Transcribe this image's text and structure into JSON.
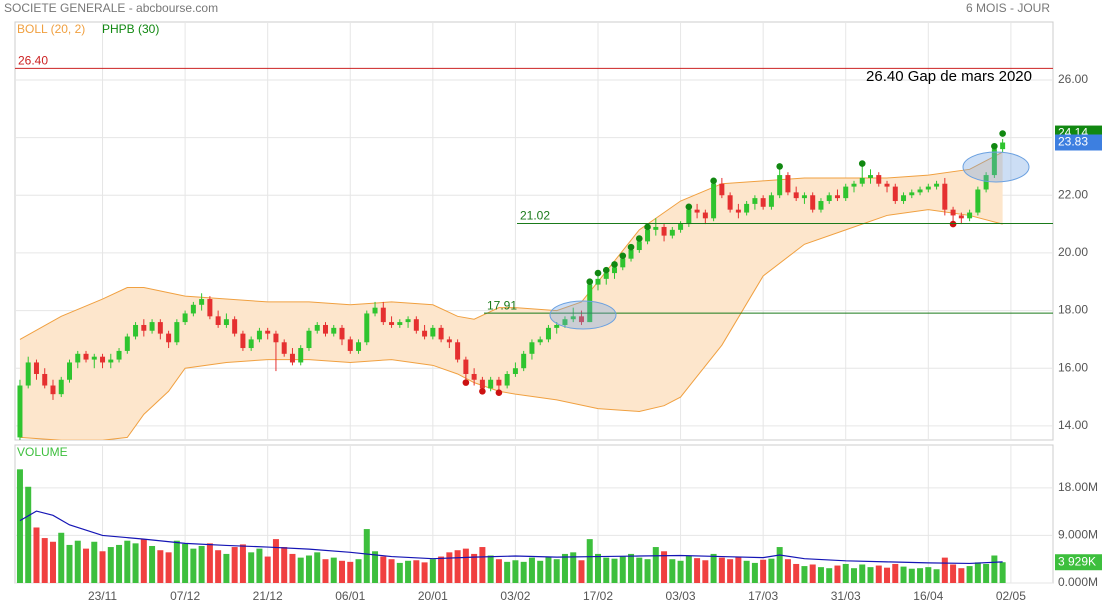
{
  "chart_data": {
    "type": "candlestick",
    "title": "SOCIETE GENERALE - abcbourse.com",
    "subtitle": "6 MOIS - JOUR",
    "grid": true,
    "up_color": "#2fc42f",
    "down_color": "#e53030",
    "last_close_color": "#3d7fe0",
    "xlim": [
      -0.6,
      125.1
    ],
    "xticks": [
      {
        "value": 10,
        "label": "23/11"
      },
      {
        "value": 20,
        "label": "07/12"
      },
      {
        "value": 30,
        "label": "21/12"
      },
      {
        "value": 40,
        "label": "06/01"
      },
      {
        "value": 50,
        "label": "20/01"
      },
      {
        "value": 60,
        "label": "03/02"
      },
      {
        "value": 70,
        "label": "17/02"
      },
      {
        "value": 80,
        "label": "03/03"
      },
      {
        "value": 90,
        "label": "17/03"
      },
      {
        "value": 100,
        "label": "31/03"
      },
      {
        "value": 110,
        "label": "16/04"
      },
      {
        "value": 120,
        "label": "02/05"
      }
    ],
    "ylim": [
      13.51,
      28.01
    ],
    "yticks": [
      {
        "value": 14,
        "label": "14.00"
      },
      {
        "value": 16,
        "label": "16.00"
      },
      {
        "value": 18,
        "label": "18.00"
      },
      {
        "value": 20,
        "label": "20.00"
      },
      {
        "value": 22,
        "label": "22.00"
      },
      {
        "value": 24,
        "label": "24.00"
      },
      {
        "value": 26,
        "label": "26.00"
      }
    ],
    "candles": [
      [
        13.6,
        15.6,
        13.5,
        15.4
      ],
      [
        15.4,
        16.4,
        15.3,
        16.2
      ],
      [
        16.2,
        16.3,
        15.6,
        15.8
      ],
      [
        15.8,
        16.0,
        15.3,
        15.4
      ],
      [
        15.4,
        15.6,
        14.9,
        15.1
      ],
      [
        15.1,
        15.7,
        15.0,
        15.6
      ],
      [
        15.6,
        16.3,
        15.5,
        16.2
      ],
      [
        16.2,
        16.6,
        16.0,
        16.5
      ],
      [
        16.5,
        16.6,
        16.2,
        16.3
      ],
      [
        16.3,
        16.5,
        16.0,
        16.4
      ],
      [
        16.4,
        16.5,
        16.0,
        16.2
      ],
      [
        16.2,
        16.5,
        16.0,
        16.3
      ],
      [
        16.3,
        16.7,
        16.2,
        16.6
      ],
      [
        16.6,
        17.2,
        16.5,
        17.1
      ],
      [
        17.1,
        17.6,
        17.0,
        17.5
      ],
      [
        17.5,
        17.7,
        17.1,
        17.3
      ],
      [
        17.3,
        17.7,
        17.2,
        17.6
      ],
      [
        17.6,
        17.7,
        17.0,
        17.2
      ],
      [
        17.2,
        17.3,
        16.7,
        16.9
      ],
      [
        16.9,
        17.7,
        16.8,
        17.6
      ],
      [
        17.6,
        18.0,
        17.5,
        17.9
      ],
      [
        17.9,
        18.3,
        17.8,
        18.2
      ],
      [
        18.2,
        18.6,
        18.0,
        18.4
      ],
      [
        18.4,
        18.5,
        17.7,
        17.8
      ],
      [
        17.8,
        18.0,
        17.4,
        17.5
      ],
      [
        17.5,
        17.9,
        17.4,
        17.7
      ],
      [
        17.7,
        17.8,
        17.1,
        17.2
      ],
      [
        17.2,
        17.3,
        16.6,
        16.7
      ],
      [
        16.7,
        17.1,
        16.6,
        17.0
      ],
      [
        17.0,
        17.4,
        16.9,
        17.3
      ],
      [
        17.3,
        17.4,
        17.0,
        17.2
      ],
      [
        17.2,
        17.3,
        15.9,
        16.9
      ],
      [
        16.9,
        17.0,
        16.4,
        16.5
      ],
      [
        16.5,
        16.7,
        16.1,
        16.2
      ],
      [
        16.2,
        16.8,
        16.1,
        16.7
      ],
      [
        16.7,
        17.4,
        16.6,
        17.3
      ],
      [
        17.3,
        17.6,
        17.2,
        17.5
      ],
      [
        17.5,
        17.6,
        17.1,
        17.2
      ],
      [
        17.2,
        17.5,
        17.1,
        17.4
      ],
      [
        17.4,
        17.5,
        16.8,
        17.0
      ],
      [
        17.0,
        17.1,
        16.5,
        16.6
      ],
      [
        16.6,
        17.0,
        16.5,
        16.9
      ],
      [
        16.9,
        18.0,
        16.8,
        17.9
      ],
      [
        17.9,
        18.3,
        17.8,
        18.1
      ],
      [
        18.1,
        18.3,
        17.5,
        17.6
      ],
      [
        17.6,
        17.8,
        17.4,
        17.5
      ],
      [
        17.5,
        17.7,
        17.4,
        17.6
      ],
      [
        17.6,
        17.8,
        17.4,
        17.7
      ],
      [
        17.7,
        17.8,
        17.2,
        17.3
      ],
      [
        17.3,
        17.5,
        17.0,
        17.1
      ],
      [
        17.1,
        17.5,
        17.0,
        17.4
      ],
      [
        17.4,
        17.5,
        16.9,
        17.0
      ],
      [
        17.0,
        17.1,
        16.7,
        16.9
      ],
      [
        16.9,
        17.0,
        16.2,
        16.3
      ],
      [
        16.3,
        16.4,
        15.6,
        15.8
      ],
      [
        15.8,
        16.0,
        15.4,
        15.6
      ],
      [
        15.6,
        15.7,
        15.2,
        15.3
      ],
      [
        15.3,
        15.7,
        15.2,
        15.6
      ],
      [
        15.6,
        15.7,
        15.2,
        15.4
      ],
      [
        15.4,
        15.9,
        15.3,
        15.8
      ],
      [
        15.8,
        16.2,
        15.7,
        16.0
      ],
      [
        16.0,
        16.6,
        15.9,
        16.5
      ],
      [
        16.5,
        17.0,
        16.3,
        16.9
      ],
      [
        16.9,
        17.1,
        16.8,
        17.0
      ],
      [
        17.0,
        17.5,
        16.9,
        17.4
      ],
      [
        17.4,
        17.6,
        17.2,
        17.5
      ],
      [
        17.5,
        17.8,
        17.4,
        17.7
      ],
      [
        17.7,
        18.1,
        17.6,
        17.8
      ],
      [
        17.8,
        18.0,
        17.5,
        17.6
      ],
      [
        17.6,
        19.0,
        17.6,
        18.9
      ],
      [
        18.9,
        19.3,
        18.7,
        19.1
      ],
      [
        19.1,
        19.4,
        18.9,
        19.3
      ],
      [
        19.3,
        19.6,
        19.1,
        19.5
      ],
      [
        19.5,
        19.9,
        19.4,
        19.8
      ],
      [
        19.8,
        20.2,
        19.7,
        20.1
      ],
      [
        20.1,
        20.5,
        20.0,
        20.4
      ],
      [
        20.4,
        20.9,
        20.3,
        20.8
      ],
      [
        20.8,
        21.2,
        20.6,
        20.9
      ],
      [
        20.9,
        21.0,
        20.4,
        20.6
      ],
      [
        20.6,
        20.9,
        20.5,
        20.8
      ],
      [
        20.8,
        21.1,
        20.7,
        21.0
      ],
      [
        21.0,
        21.6,
        20.9,
        21.5
      ],
      [
        21.5,
        21.7,
        21.2,
        21.4
      ],
      [
        21.4,
        21.5,
        21.0,
        21.2
      ],
      [
        21.2,
        22.5,
        21.1,
        22.4
      ],
      [
        22.4,
        22.6,
        21.9,
        22.0
      ],
      [
        22.0,
        22.1,
        21.4,
        21.5
      ],
      [
        21.5,
        21.7,
        21.2,
        21.4
      ],
      [
        21.4,
        21.8,
        21.3,
        21.7
      ],
      [
        21.7,
        22.0,
        21.5,
        21.9
      ],
      [
        21.9,
        22.0,
        21.5,
        21.6
      ],
      [
        21.6,
        22.1,
        21.5,
        22.0
      ],
      [
        22.0,
        23.0,
        21.9,
        22.7
      ],
      [
        22.7,
        22.8,
        22.0,
        22.1
      ],
      [
        22.1,
        22.3,
        21.8,
        21.9
      ],
      [
        21.9,
        22.1,
        21.7,
        22.0
      ],
      [
        22.0,
        22.1,
        21.4,
        21.5
      ],
      [
        21.5,
        21.9,
        21.4,
        21.8
      ],
      [
        21.8,
        22.1,
        21.7,
        22.0
      ],
      [
        22.0,
        22.2,
        21.8,
        21.9
      ],
      [
        21.9,
        22.4,
        21.8,
        22.3
      ],
      [
        22.3,
        22.5,
        22.1,
        22.4
      ],
      [
        22.4,
        23.1,
        22.3,
        22.6
      ],
      [
        22.6,
        22.9,
        22.4,
        22.7
      ],
      [
        22.7,
        22.8,
        22.3,
        22.4
      ],
      [
        22.4,
        22.5,
        22.1,
        22.3
      ],
      [
        22.3,
        22.4,
        21.7,
        21.8
      ],
      [
        21.8,
        22.1,
        21.7,
        22.0
      ],
      [
        22.0,
        22.2,
        21.9,
        22.1
      ],
      [
        22.1,
        22.3,
        22.0,
        22.2
      ],
      [
        22.2,
        22.4,
        22.1,
        22.3
      ],
      [
        22.3,
        22.5,
        22.2,
        22.4
      ],
      [
        22.4,
        22.6,
        21.3,
        21.5
      ],
      [
        21.5,
        21.6,
        21.1,
        21.3
      ],
      [
        21.3,
        21.4,
        21.0,
        21.2
      ],
      [
        21.2,
        21.5,
        21.1,
        21.4
      ],
      [
        21.4,
        22.3,
        21.3,
        22.2
      ],
      [
        22.2,
        22.8,
        22.1,
        22.7
      ],
      [
        22.7,
        23.7,
        22.6,
        23.6
      ],
      [
        23.6,
        23.95,
        23.5,
        23.83
      ]
    ],
    "bollinger": {
      "name": "BOLL (20, 2)",
      "color": "#f0a040",
      "fill": "#fde6cc",
      "upper": {
        "x": [
          0,
          5,
          10,
          13,
          15,
          20,
          25,
          30,
          35,
          40,
          45,
          50,
          53,
          55,
          58,
          60,
          65,
          68,
          70,
          75,
          80,
          85,
          90,
          95,
          100,
          105,
          110,
          115,
          119
        ],
        "values": [
          17.0,
          17.8,
          18.4,
          18.8,
          18.8,
          18.5,
          18.4,
          18.3,
          18.3,
          18.2,
          18.3,
          18.2,
          17.8,
          17.7,
          18.1,
          18.1,
          18.0,
          18.3,
          19.0,
          20.8,
          21.8,
          22.4,
          22.5,
          22.6,
          22.6,
          22.6,
          22.7,
          22.9,
          23.5
        ]
      },
      "lower": {
        "x": [
          0,
          5,
          10,
          13,
          15,
          18,
          20,
          25,
          30,
          35,
          40,
          45,
          50,
          53,
          55,
          58,
          60,
          65,
          70,
          75,
          78,
          80,
          85,
          90,
          95,
          100,
          105,
          110,
          115,
          119
        ],
        "values": [
          13.6,
          13.5,
          13.5,
          13.6,
          14.4,
          15.2,
          16.0,
          16.2,
          16.3,
          16.3,
          16.2,
          16.3,
          16.1,
          15.8,
          15.5,
          15.2,
          15.1,
          14.9,
          14.6,
          14.5,
          14.7,
          15.0,
          16.8,
          19.2,
          20.3,
          20.8,
          21.3,
          21.5,
          21.3,
          21.0
        ]
      }
    },
    "phpb": {
      "name": "PHPB (30)",
      "color": "#118811",
      "x": [
        54,
        56,
        58,
        69,
        70,
        71,
        72,
        73,
        74,
        75,
        76,
        81,
        84,
        92,
        102,
        113,
        118,
        119
      ],
      "values": [
        15.5,
        15.2,
        15.15,
        19.0,
        19.3,
        19.4,
        19.6,
        19.9,
        20.2,
        20.5,
        20.9,
        21.6,
        22.5,
        23.0,
        23.1,
        21.0,
        23.7,
        24.14
      ],
      "colors": [
        "#cc1111",
        "#cc1111",
        "#cc1111",
        "#118811",
        "#118811",
        "#118811",
        "#118811",
        "#118811",
        "#118811",
        "#118811",
        "#118811",
        "#118811",
        "#118811",
        "#118811",
        "#118811",
        "#cc1111",
        "#118811",
        "#118811"
      ]
    },
    "levels": [
      {
        "value": 26.4,
        "label": "26.40",
        "color": "#cc2222"
      },
      {
        "value": 21.02,
        "color": "#1a7a1a"
      },
      {
        "value": 17.91,
        "color": "#1a7a1a"
      }
    ],
    "annotation": "26.40 Gap de mars 2020",
    "volume": {
      "title": "VOLUME",
      "color_up": "#3dbf3d",
      "color_down": "#f04040",
      "ma_color": "#1515b5",
      "ylim": [
        0,
        26.1
      ],
      "yticks": [
        {
          "value": 0,
          "label": "0.000M"
        },
        {
          "value": 9,
          "label": "9.000M"
        },
        {
          "value": 18,
          "label": "18.00M"
        }
      ],
      "values": [
        21.5,
        18.2,
        10.5,
        8.5,
        7.8,
        9.5,
        7.2,
        8.0,
        6.5,
        7.8,
        6.0,
        6.8,
        7.2,
        8.0,
        7.5,
        8.3,
        7.0,
        6.2,
        5.8,
        8.0,
        7.4,
        6.5,
        7.0,
        7.5,
        6.2,
        5.5,
        6.8,
        7.3,
        5.8,
        6.5,
        5.0,
        8.3,
        6.8,
        5.5,
        4.8,
        5.2,
        5.8,
        4.5,
        4.8,
        4.2,
        4.0,
        4.5,
        10.2,
        6.0,
        5.0,
        4.5,
        3.8,
        4.2,
        4.3,
        3.9,
        4.5,
        5.0,
        5.8,
        6.2,
        6.5,
        5.5,
        6.8,
        5.2,
        4.5,
        4.0,
        4.3,
        4.0,
        4.8,
        4.2,
        5.0,
        4.5,
        5.5,
        5.8,
        4.3,
        8.3,
        5.5,
        4.8,
        4.6,
        5.0,
        5.5,
        4.8,
        4.5,
        6.8,
        6.0,
        4.5,
        4.2,
        5.2,
        4.7,
        4.3,
        5.5,
        4.8,
        4.5,
        5.0,
        4.2,
        3.8,
        4.4,
        4.6,
        6.8,
        4.5,
        3.6,
        3.2,
        3.5,
        3.0,
        2.8,
        3.3,
        3.6,
        2.8,
        3.5,
        3.0,
        3.3,
        2.9,
        3.6,
        3.1,
        2.7,
        2.8,
        3.0,
        2.6,
        4.8,
        3.5,
        2.8,
        3.2,
        3.9,
        3.6,
        5.2,
        3.929
      ],
      "last_label": "3 929K",
      "ma": {
        "x": [
          0,
          2,
          4,
          6,
          10,
          15,
          20,
          25,
          30,
          35,
          40,
          45,
          50,
          55,
          60,
          65,
          70,
          75,
          80,
          85,
          90,
          92,
          95,
          100,
          105,
          110,
          115,
          119
        ],
        "values": [
          11.8,
          13.6,
          12.8,
          11.0,
          9.0,
          8.3,
          7.5,
          7.1,
          6.8,
          6.4,
          5.8,
          5.0,
          4.6,
          4.9,
          5.1,
          4.9,
          5.0,
          5.1,
          5.2,
          5.0,
          4.8,
          5.3,
          4.6,
          4.2,
          4.0,
          3.8,
          3.7,
          4.0
        ]
      }
    }
  }
}
